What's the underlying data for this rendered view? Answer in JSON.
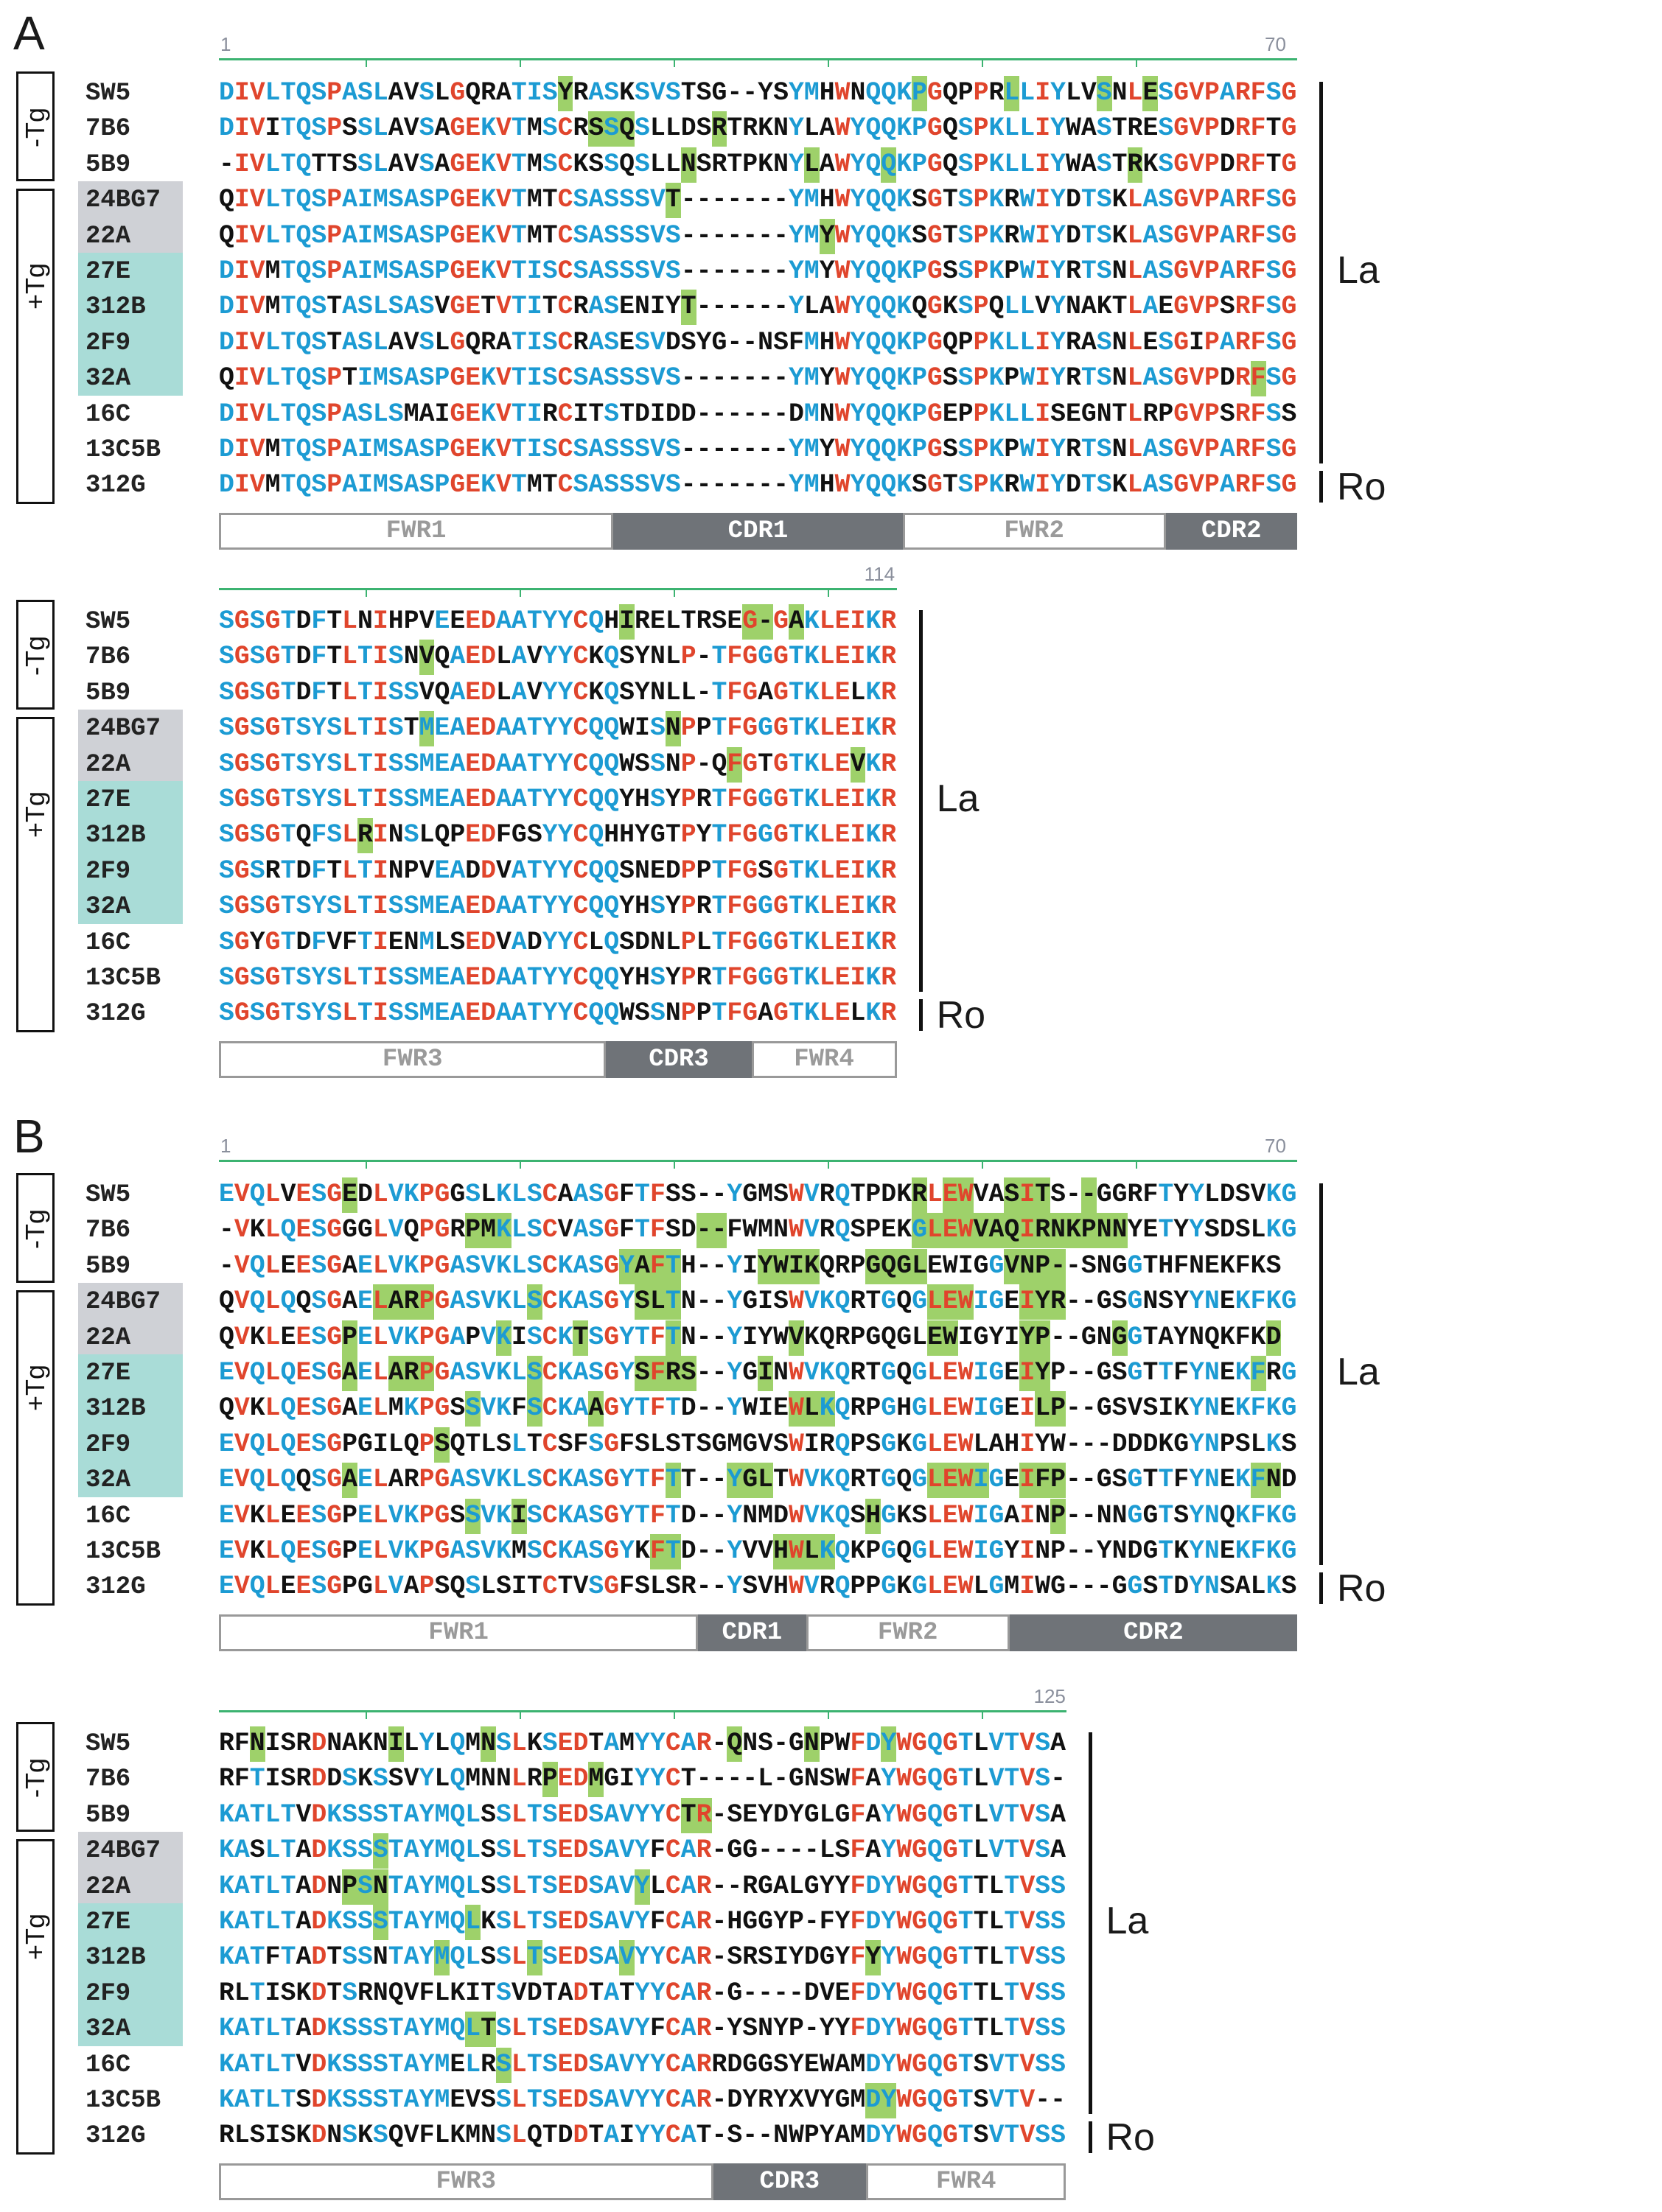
{
  "panels": [
    {
      "label": "A",
      "blocks": [
        {
          "start": "1",
          "end": "70",
          "names": [
            "SW5",
            "7B6",
            "5B9",
            "24BG7",
            "22A",
            "27E",
            "312B",
            "2F9",
            "32A",
            "16C",
            "13C5B",
            "312G"
          ],
          "rows": [
            "DIVLTQSPASLAVSLGQRATISYRASKSVSTSG--YSYMHWNQQKPGQPPRLLIYLVSNLESGVPARFSG",
            "DIVITQSPSSLAVSAGEKVTMSCRSSQSLLDSRTRKNYLAWYQQKPGQSPKLLIYWASTRESGVPDRFTG",
            "-IVLTQTTSSLAVSAGEKVTMSCKSSQSLLNSRTPKNYLAWYQQKPGQSPKLLIYWASTRKSGVPDRFTG",
            "QIVLTQSPAIMSASPGEKVTMTCSASSSVT-------YMHWYQQKSGTSPKRWIYDTSKLASGVPARFSG",
            "QIVLTQSPAIMSASPGEKVTMTCSASSSVS-------YMYWYQQKSGTSPKRWIYDTSKLASGVPARFSG",
            "DIVMTQSPAIMSASPGEKVTISCSASSSVS-------YMYWYQQKPGSSPKPWIYRTSNLASGVPARFSG",
            "DIVMTQSTASLSASVGETVTITCRASENIYT------YLAWYQQKQGKSPQLLVYNAKTLAEGVPSRFSG",
            "DIVLTQSTASLAVSLGQRATISCRASESVDSYG--NSFMHWYQQKPGQPPKLLIYRASNLESGIPARFSG",
            "QIVLTQSPTIMSASPGEKVTISCSASSSVS-------YMYWYQQKPGSSPKPWIYRTSNLASGVPDRFSG",
            "DIVLTQSPASLSMAIGEKVTIRCITSTDIDD------DMNWYQQKPGEPPKLLISEGNTLRPGVPSRFSS",
            "DIVMTQSPAIMSASPGEKVTISCSASSSVS-------YMYWYQQKPGSSPKPWIYRTSNLASGVPARFSG",
            "DIVMTQSPAIMSASPGEKVTMTCSASSSVS-------YMHWYQQKSGTSPKRWIYDTSKLASGVPARFSG"
          ],
          "regions": [
            "FWR1",
            "CDR1",
            "FWR2",
            "CDR2"
          ]
        },
        {
          "start": "",
          "end": "114",
          "names": [
            "SW5",
            "7B6",
            "5B9",
            "24BG7",
            "22A",
            "27E",
            "312B",
            "2F9",
            "32A",
            "16C",
            "13C5B",
            "312G"
          ],
          "rows": [
            "SGSGTDFTLNIHPVEEEDAATYYCQHIRELTRSEG-GAKLEIKR",
            "SGSGTDFTLTISNVQAEDLAVYYCKQSYNLP-TFGGGTKLEIKR",
            "SGSGTDFTLTISSVQAEDLAVYYCKQSYNLL-TFGAGTKLELKR",
            "SGSGTSYSLTISTMEAEDAATYYCQQWISNPPTFGGGTKLEIKR",
            "SGSGTSYSLTISSMEAEDAATYYCQQWSSNP-QFGTGTKLEVKR",
            "SGSGTSYSLTISSMEAEDAATYYCQQYHSYPRTFGGGTKLEIKR",
            "SGSGTQFSLRINSLQPEDFGSYYCQHHYGTPYTFGGGTKLEIKR",
            "SGSRTDFTLTINPVEADDVATYYCQQSNEDPPTFGSGTKLEIKR",
            "SGSGTSYSLTISSMEAEDAATYYCQQYHSYPRTFGGGTKLEIKR",
            "SGYGTDFVFTIENMLSEDVADYYCLQSDNLPLTFGGGTKLEIKR",
            "SGSGTSYSLTISSMEAEDAATYYCQQYHSYPRTFGGGTKLEIKR",
            "SGSGTSYSLTISSMEAEDAATYYCQQWSSNPPTFGAGTKLELKR"
          ],
          "regions": [
            "FWR3",
            "CDR3",
            "FWR4"
          ]
        }
      ]
    },
    {
      "label": "B",
      "blocks": [
        {
          "start": "1",
          "end": "70",
          "names": [
            "SW5",
            "7B6",
            "5B9",
            "24BG7",
            "22A",
            "27E",
            "312B",
            "2F9",
            "32A",
            "16C",
            "13C5B",
            "312G"
          ],
          "rows": [
            "EVQLVESGEDLVKPGGSLKLSCAASGFTFSS--YGMSWVRQTPDKRLEWVASITS--GGRFTYYLDSVKG",
            "-VKLQESGGGLVQPGRPMKLSCVASGFTFSD--FWMNWVRQSPEKGLEWVAQIRNKPNNYETYYSDSLKG",
            "-VQLEESGAELVKPGASVKLSCKASGYAFTH--YIYWIKQRPGQGLEWIGGVNP--SNGGTHFNEKFKS",
            "QVQLQQSGAELARPGASVKLSCKASGYSLTN--YGISWVKQRTGQGLEWIGEIYR--GSGNSYYNEKFKG",
            "QVKLEESGPELVKPGAPVKISCKTSGYTFTN--YIYWVKQRPGQGLEWIGYIYP--GNGGTAYNQKFKD",
            "EVQLQESGAELARPGASVKLSCKASGYSFRS--YGINWVKQRTGQGLEWIGEIYP--GSGTTFYNEKFRG",
            "QVKLQESGAELMKPGSSVKFSCKAAGYTFTD--YWIEWLKQRPGHGLEWIGEILP--GSVSIKYNEKFKG",
            "EVQLQESGPGILQPSQTLSLTCSFSGFSLSTSGMGVSWIRQPSGKGLEWLAHIYW---DDDKGYNPSLKS",
            "EVQLQQSGAELARPGASVKLSCKASGYTFTT--YGLTWVKQRTGQGLEWIGEIFP--GSGTTFYNEKFND",
            "EVKLEESGPELVKPGSSVKISCKASGYTFTD--YNMDWVKQSHGKSLEWIGAINP--NNGGTSYNQKFKG",
            "EVKLQESGPELVKPGASVKMSCKASGYKFTD--YVVHWLKQKPGQGLEWIGYINP--YNDGTKYNEKFKG",
            "EVQLEESGPGLVAPSQSLSITCTVSGFSLSR--YSVHWVRQPPGKGLEWLGMIWG---GGSTDYNSALKS"
          ],
          "regions": [
            "FWR1",
            "CDR1",
            "FWR2",
            "CDR2"
          ]
        },
        {
          "start": "",
          "end": "125",
          "names": [
            "SW5",
            "7B6",
            "5B9",
            "24BG7",
            "22A",
            "27E",
            "312B",
            "2F9",
            "32A",
            "16C",
            "13C5B",
            "312G"
          ],
          "rows": [
            "RFNISRDNAKNILYLQMNSLKSEDTAMYYCAR-QNS-GNPWFDYWGQGTLVTVSA",
            "RFTISRDDSKSSVYLQMNNLRPEDMGIYYCT----L-GNSWFAYWGQGTLVTVS-",
            "KATLTVDKSSSTAYMQLSSLTSEDSAVYYCTR-SEYDYGLGFAYWGQGTLVTVSA",
            "KASLTADKSSSTAYMQLSSLTSEDSAVYFCAR-GG----LSFAYWGQGTLVTVSA",
            "KATLTADNPSNTAYMQLSSLTSEDSAVYLCAR--RGALGYYFDYWGQGTTLTVSS",
            "KATLTADKSSSTAYMQLKSLTSEDSAVYFCAR-HGGYP-FYFDYWGQGTTLTVSS",
            "KATFTADTSSNTAYMQLSSLTSEDSAVYYCAR-SRSIYDGYFYYWGQGTTLTVSS",
            "RLTISKDTSRNQVFLKITSVDTADTATYYCAR-G----DVEFDYWGQGTTLTVSS",
            "KATLTADKSSSTAYMQLTSLTSEDSAVYFCAR-YSNYP-YYFDYWGQGTTLTVSS",
            "KATLTVDKSSSTAYMELRSLTSEDSAVYYCARRDGGSYEWAMDYWGQGTSVTVSS",
            "KATLTSDKSSSTAYMEVSSLTSEDSAVYYCAR-DYRYXVYGMDYWGQGTSVTV--",
            "RLSISKDNSKSQVFLKMNSLQTDDTAIYYCAT-S--NWPYAMDYWGQGTSVTVSS"
          ],
          "regions": [
            "FWR3",
            "CDR3",
            "FWR4"
          ]
        }
      ]
    }
  ],
  "group_labels": {
    "minus_tg": "-Tg",
    "plus_tg": "+Tg"
  },
  "specificity": {
    "la": "La",
    "ro": "Ro"
  },
  "colors": {
    "red": "#e0452c",
    "blue": "#1c9bd3",
    "black": "#111111",
    "green_highlight": "#9ed16a",
    "gray_label_bg": "#cfd1d6",
    "teal_label_bg": "#a9dcd7",
    "cdr_fill": "#6f7378"
  }
}
